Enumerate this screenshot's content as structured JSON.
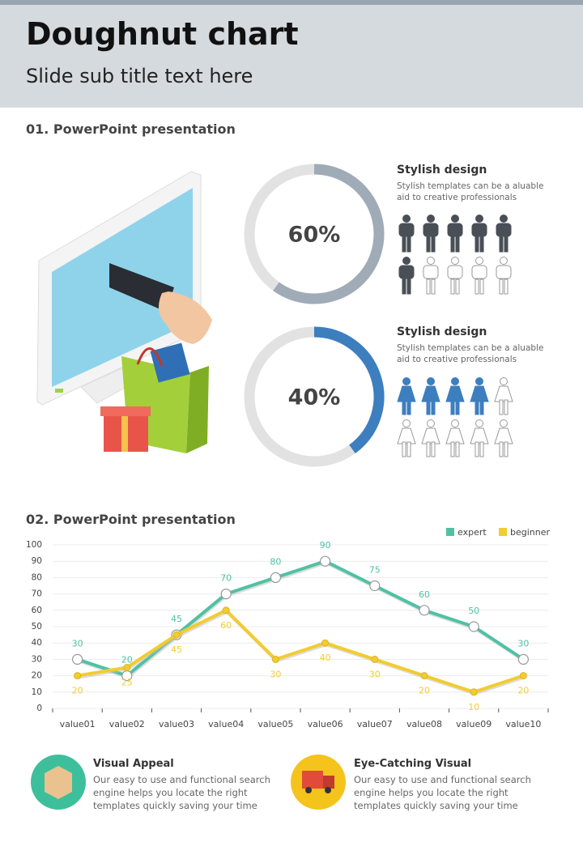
{
  "header": {
    "title": "Doughnut chart",
    "subtitle": "Slide sub title text here"
  },
  "section": {
    "heading": "01. PowerPoint presentation"
  },
  "chart_data": [
    {
      "type": "doughnut",
      "title": "Stylish design",
      "subtitle": "Stylish templates can be a aluable aid to creative professionals",
      "values": [
        60
      ],
      "value_labels": [
        "60%"
      ],
      "color": "#a0abb8",
      "icon": "man",
      "icon_color": "#4a4f57"
    },
    {
      "type": "doughnut",
      "title": "Stylish design",
      "subtitle": "Stylish templates can be a aluable aid to creative professionals",
      "values": [
        40
      ],
      "value_labels": [
        "40%"
      ],
      "color": "#3d7ebf",
      "icon": "woman",
      "icon_color": "#3d7ebf"
    },
    {
      "type": "line",
      "title": "02. PowerPoint presentation",
      "categories": [
        "value01",
        "value02",
        "value03",
        "value04",
        "value05",
        "value06",
        "value07",
        "value08",
        "value09",
        "value10"
      ],
      "series": [
        {
          "name": "expert",
          "color": "#4fc1a4",
          "values": [
            30,
            20,
            45,
            70,
            80,
            90,
            75,
            60,
            50,
            30
          ]
        },
        {
          "name": "beginner",
          "color": "#f2cc30",
          "values": [
            20,
            25,
            45,
            60,
            30,
            40,
            30,
            20,
            10,
            20
          ]
        }
      ],
      "ylim": [
        0,
        100
      ],
      "yticks": [
        0,
        10,
        20,
        30,
        40,
        50,
        60,
        70,
        80,
        90,
        100
      ],
      "grid": true,
      "legend": "top-right",
      "data_labels": true
    }
  ],
  "features": [
    {
      "title": "Visual Appeal",
      "text": "Our easy to use and functional search engine helps you locate the right templates quickly saving your time"
    },
    {
      "title": "Eye-Catching Visual",
      "text": "Our easy to use and functional search engine helps you locate the right templates quickly saving your time"
    }
  ]
}
